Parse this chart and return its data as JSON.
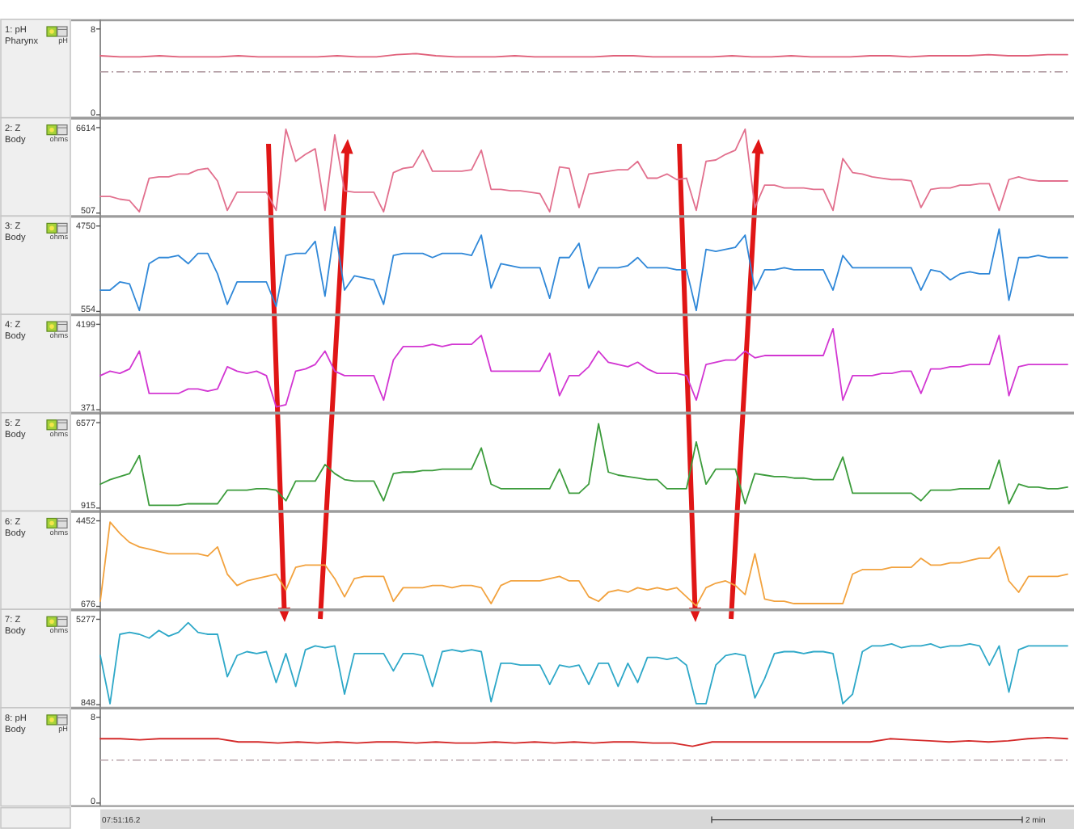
{
  "chart_data": [
    {
      "type": "line",
      "ylabel": "1: pH Pharynx",
      "annotations": [
        "pH"
      ],
      "categories": [
        null,
        null,
        null,
        null,
        null,
        null,
        null,
        null,
        null,
        null,
        null,
        null,
        null,
        null,
        null,
        null,
        null,
        null,
        null,
        null,
        null,
        null,
        null,
        null,
        null,
        null,
        null,
        null,
        null,
        null,
        null,
        null,
        null,
        null,
        null,
        null,
        null,
        null,
        null,
        null,
        null,
        null,
        null,
        null,
        null,
        null,
        null,
        null,
        null,
        null
      ],
      "series": [
        {
          "color": "#e0607a",
          "values": [
            5.5,
            5.4,
            5.4,
            5.5,
            5.4,
            5.4,
            5.4,
            5.5,
            5.4,
            5.4,
            5.4,
            5.4,
            5.5,
            5.4,
            5.4,
            5.6,
            5.7,
            5.5,
            5.4,
            5.4,
            5.4,
            5.5,
            5.4,
            5.4,
            5.4,
            5.4,
            5.5,
            5.5,
            5.4,
            5.4,
            5.4,
            5.4,
            5.5,
            5.4,
            5.4,
            5.5,
            5.4,
            5.4,
            5.4,
            5.5,
            5.5,
            5.4,
            5.5,
            5.5,
            5.5,
            5.6,
            5.5,
            5.5,
            5.6,
            5.6
          ]
        }
      ],
      "ylim": [
        0,
        8.8
      ],
      "yticks": [
        0,
        8
      ],
      "ref_lines": [
        {
          "axis": "y",
          "value": 4,
          "color": "#b8a4aa",
          "line_style": "dashed"
        }
      ]
    },
    {
      "type": "line",
      "ylabel": "2: Z Body",
      "annotations": [
        "ohms"
      ],
      "categories": [
        null,
        null,
        null,
        null,
        null,
        null,
        null,
        null,
        null,
        null,
        null,
        null,
        null,
        null,
        null,
        null,
        null,
        null,
        null,
        null,
        null,
        null,
        null,
        null,
        null,
        null,
        null,
        null,
        null,
        null,
        null,
        null,
        null,
        null,
        null,
        null,
        null,
        null,
        null,
        null,
        null,
        null,
        null,
        null,
        null,
        null,
        null,
        null,
        null,
        null,
        null,
        null,
        null,
        null,
        null,
        null,
        null,
        null,
        null,
        null,
        null,
        null,
        null,
        null,
        null,
        null,
        null,
        null,
        null,
        null,
        null,
        null,
        null,
        null,
        null,
        null,
        null,
        null,
        null,
        null,
        null,
        null,
        null,
        null,
        null,
        null,
        null,
        null,
        null,
        null,
        null,
        null,
        null,
        null,
        null,
        null,
        null,
        null,
        null,
        null
      ],
      "series": [
        {
          "color": "#e2708e",
          "values": [
            1700,
            1700,
            1500,
            1400,
            600,
            3000,
            3100,
            3100,
            3300,
            3300,
            3600,
            3700,
            2800,
            700,
            2000,
            2000,
            2000,
            2000,
            700,
            6500,
            4200,
            4700,
            5100,
            700,
            6100,
            2100,
            2000,
            2000,
            2000,
            600,
            3400,
            3700,
            3800,
            5000,
            3500,
            3500,
            3500,
            3500,
            3600,
            5000,
            2200,
            2200,
            2100,
            2100,
            2000,
            1900,
            600,
            3800,
            3700,
            900,
            3300,
            3400,
            3500,
            3600,
            3600,
            4200,
            3000,
            3000,
            3300,
            2900,
            3000,
            700,
            4200,
            4300,
            4700,
            5000,
            6500,
            900,
            2500,
            2500,
            2300,
            2300,
            2300,
            2200,
            2200,
            700,
            4400,
            3400,
            3300,
            3100,
            3000,
            2900,
            2900,
            2800,
            900,
            2200,
            2300,
            2300,
            2500,
            2500,
            2600,
            2600,
            700,
            2900,
            3100,
            2900,
            2800,
            2800,
            2800,
            2800
          ]
        }
      ],
      "ylim": [
        507,
        7250
      ],
      "yticks": [
        507,
        6614
      ]
    },
    {
      "type": "line",
      "ylabel": "3: Z Body",
      "annotations": [
        "ohms"
      ],
      "categories": [
        null,
        null,
        null,
        null,
        null,
        null,
        null,
        null,
        null,
        null,
        null,
        null,
        null,
        null,
        null,
        null,
        null,
        null,
        null,
        null,
        null,
        null,
        null,
        null,
        null,
        null,
        null,
        null,
        null,
        null,
        null,
        null,
        null,
        null,
        null,
        null,
        null,
        null,
        null,
        null,
        null,
        null,
        null,
        null,
        null,
        null,
        null,
        null,
        null,
        null,
        null,
        null,
        null,
        null,
        null,
        null,
        null,
        null,
        null,
        null,
        null,
        null,
        null,
        null,
        null,
        null,
        null,
        null,
        null,
        null,
        null,
        null,
        null,
        null,
        null,
        null,
        null,
        null,
        null,
        null,
        null,
        null,
        null,
        null,
        null,
        null,
        null,
        null,
        null,
        null,
        null,
        null,
        null,
        null,
        null,
        null,
        null,
        null,
        null,
        null
      ],
      "series": [
        {
          "color": "#3088d8",
          "values": [
            1600,
            1600,
            2000,
            1900,
            600,
            2900,
            3200,
            3200,
            3300,
            2900,
            3400,
            3400,
            2400,
            900,
            2000,
            2000,
            2000,
            2000,
            800,
            3300,
            3400,
            3400,
            4000,
            1300,
            4700,
            1600,
            2300,
            2200,
            2100,
            900,
            3300,
            3400,
            3400,
            3400,
            3200,
            3400,
            3400,
            3400,
            3300,
            4300,
            1700,
            2900,
            2800,
            2700,
            2700,
            2700,
            1200,
            3200,
            3200,
            3900,
            1700,
            2700,
            2700,
            2700,
            2800,
            3200,
            2700,
            2700,
            2700,
            2600,
            2600,
            600,
            3600,
            3500,
            3600,
            3700,
            4300,
            1600,
            2600,
            2600,
            2700,
            2600,
            2600,
            2600,
            2600,
            1600,
            3300,
            2700,
            2700,
            2700,
            2700,
            2700,
            2700,
            2700,
            1600,
            2600,
            2500,
            2100,
            2400,
            2500,
            2400,
            2400,
            4600,
            1100,
            3200,
            3200,
            3300,
            3200,
            3200,
            3200
          ]
        }
      ],
      "ylim": [
        554,
        5190
      ],
      "yticks": [
        554,
        4750
      ]
    },
    {
      "type": "line",
      "ylabel": "4: Z Body",
      "annotations": [
        "ohms"
      ],
      "categories": [
        null,
        null,
        null,
        null,
        null,
        null,
        null,
        null,
        null,
        null,
        null,
        null,
        null,
        null,
        null,
        null,
        null,
        null,
        null,
        null,
        null,
        null,
        null,
        null,
        null,
        null,
        null,
        null,
        null,
        null,
        null,
        null,
        null,
        null,
        null,
        null,
        null,
        null,
        null,
        null,
        null,
        null,
        null,
        null,
        null,
        null,
        null,
        null,
        null,
        null,
        null,
        null,
        null,
        null,
        null,
        null,
        null,
        null,
        null,
        null,
        null,
        null,
        null,
        null,
        null,
        null,
        null,
        null,
        null,
        null,
        null,
        null,
        null,
        null,
        null,
        null,
        null,
        null,
        null,
        null,
        null,
        null,
        null,
        null,
        null,
        null,
        null,
        null,
        null,
        null,
        null,
        null,
        null,
        null,
        null,
        null,
        null,
        null,
        null,
        null
      ],
      "series": [
        {
          "color": "#d236d2",
          "values": [
            1900,
            2100,
            2000,
            2200,
            3000,
            1100,
            1100,
            1100,
            1100,
            1300,
            1300,
            1200,
            1300,
            2300,
            2100,
            2000,
            2100,
            1900,
            500,
            600,
            2100,
            2200,
            2400,
            3000,
            2100,
            1900,
            1900,
            1900,
            1900,
            800,
            2600,
            3200,
            3200,
            3200,
            3300,
            3200,
            3300,
            3300,
            3300,
            3700,
            2100,
            2100,
            2100,
            2100,
            2100,
            2100,
            2900,
            1000,
            1900,
            1900,
            2300,
            3000,
            2500,
            2400,
            2300,
            2500,
            2200,
            2000,
            2000,
            2000,
            1900,
            800,
            2400,
            2500,
            2600,
            2600,
            3000,
            2700,
            2800,
            2800,
            2800,
            2800,
            2800,
            2800,
            2800,
            4000,
            800,
            1900,
            1900,
            1900,
            2000,
            2000,
            2100,
            2100,
            1100,
            2200,
            2200,
            2300,
            2300,
            2400,
            2400,
            2400,
            3700,
            1000,
            2300,
            2400,
            2400,
            2400,
            2400,
            2400
          ]
        }
      ],
      "ylim": [
        371,
        4600
      ],
      "yticks": [
        371,
        4199
      ]
    },
    {
      "type": "line",
      "ylabel": "5: Z Body",
      "annotations": [
        "ohms"
      ],
      "categories": [
        null,
        null,
        null,
        null,
        null,
        null,
        null,
        null,
        null,
        null,
        null,
        null,
        null,
        null,
        null,
        null,
        null,
        null,
        null,
        null,
        null,
        null,
        null,
        null,
        null,
        null,
        null,
        null,
        null,
        null,
        null,
        null,
        null,
        null,
        null,
        null,
        null,
        null,
        null,
        null,
        null,
        null,
        null,
        null,
        null,
        null,
        null,
        null,
        null,
        null,
        null,
        null,
        null,
        null,
        null,
        null,
        null,
        null,
        null,
        null,
        null,
        null,
        null,
        null,
        null,
        null,
        null,
        null,
        null,
        null,
        null,
        null,
        null,
        null,
        null,
        null,
        null,
        null,
        null,
        null,
        null,
        null,
        null,
        null,
        null,
        null,
        null,
        null,
        null,
        null,
        null,
        null,
        null,
        null,
        null,
        null,
        null,
        null,
        null,
        null
      ],
      "series": [
        {
          "color": "#3c9c3c",
          "values": [
            2500,
            2800,
            3000,
            3200,
            4400,
            1100,
            1100,
            1100,
            1100,
            1200,
            1200,
            1200,
            1200,
            2100,
            2100,
            2100,
            2200,
            2200,
            2100,
            1400,
            2700,
            2700,
            2700,
            3800,
            3200,
            2800,
            2700,
            2700,
            2700,
            1400,
            3200,
            3300,
            3300,
            3400,
            3400,
            3500,
            3500,
            3500,
            3500,
            4900,
            2500,
            2200,
            2200,
            2200,
            2200,
            2200,
            2200,
            3500,
            1900,
            1900,
            2500,
            6500,
            3300,
            3100,
            3000,
            2900,
            2800,
            2800,
            2200,
            2200,
            2200,
            5300,
            2500,
            3500,
            3500,
            3500,
            1200,
            3200,
            3100,
            3000,
            3000,
            2900,
            2900,
            2800,
            2800,
            2800,
            4300,
            1900,
            1900,
            1900,
            1900,
            1900,
            1900,
            1900,
            1400,
            2100,
            2100,
            2100,
            2200,
            2200,
            2200,
            2200,
            4100,
            1200,
            2500,
            2300,
            2300,
            2200,
            2200,
            2300
          ]
        }
      ],
      "ylim": [
        915,
        7170
      ],
      "yticks": [
        915,
        6577
      ]
    },
    {
      "type": "line",
      "ylabel": "6: Z Body",
      "annotations": [
        "ohms"
      ],
      "categories": [
        null,
        null,
        null,
        null,
        null,
        null,
        null,
        null,
        null,
        null,
        null,
        null,
        null,
        null,
        null,
        null,
        null,
        null,
        null,
        null,
        null,
        null,
        null,
        null,
        null,
        null,
        null,
        null,
        null,
        null,
        null,
        null,
        null,
        null,
        null,
        null,
        null,
        null,
        null,
        null,
        null,
        null,
        null,
        null,
        null,
        null,
        null,
        null,
        null,
        null,
        null,
        null,
        null,
        null,
        null,
        null,
        null,
        null,
        null,
        null,
        null,
        null,
        null,
        null,
        null,
        null,
        null,
        null,
        null,
        null,
        null,
        null,
        null,
        null,
        null,
        null,
        null,
        null,
        null,
        null,
        null,
        null,
        null,
        null,
        null,
        null,
        null,
        null,
        null,
        null,
        null,
        null,
        null,
        null,
        null,
        null,
        null,
        null,
        null,
        null
      ],
      "series": [
        {
          "color": "#f2a23e",
          "values": [
            900,
            4400,
            3900,
            3500,
            3300,
            3200,
            3100,
            3000,
            3000,
            3000,
            3000,
            2900,
            3300,
            2100,
            1600,
            1800,
            1900,
            2000,
            2100,
            1400,
            2400,
            2500,
            2500,
            2500,
            1900,
            1100,
            1900,
            2000,
            2000,
            2000,
            900,
            1500,
            1500,
            1500,
            1600,
            1600,
            1500,
            1600,
            1600,
            1500,
            800,
            1600,
            1800,
            1800,
            1800,
            1800,
            1900,
            2000,
            1800,
            1800,
            1100,
            900,
            1300,
            1400,
            1300,
            1500,
            1400,
            1500,
            1400,
            1500,
            1100,
            700,
            1500,
            1700,
            1800,
            1600,
            1200,
            3000,
            1000,
            900,
            900,
            800,
            800,
            800,
            800,
            800,
            800,
            2100,
            2300,
            2300,
            2300,
            2400,
            2400,
            2400,
            2800,
            2500,
            2500,
            2600,
            2600,
            2700,
            2800,
            2800,
            3300,
            1800,
            1300,
            2000,
            2000,
            2000,
            2000,
            2100
          ]
        }
      ],
      "ylim": [
        676,
        4840
      ],
      "yticks": [
        676,
        4452
      ]
    },
    {
      "type": "line",
      "ylabel": "7: Z Body",
      "annotations": [
        "ohms"
      ],
      "categories": [
        null,
        null,
        null,
        null,
        null,
        null,
        null,
        null,
        null,
        null,
        null,
        null,
        null,
        null,
        null,
        null,
        null,
        null,
        null,
        null,
        null,
        null,
        null,
        null,
        null,
        null,
        null,
        null,
        null,
        null,
        null,
        null,
        null,
        null,
        null,
        null,
        null,
        null,
        null,
        null,
        null,
        null,
        null,
        null,
        null,
        null,
        null,
        null,
        null,
        null,
        null,
        null,
        null,
        null,
        null,
        null,
        null,
        null,
        null,
        null,
        null,
        null,
        null,
        null,
        null,
        null,
        null,
        null,
        null,
        null,
        null,
        null,
        null,
        null,
        null,
        null,
        null,
        null,
        null,
        null,
        null,
        null,
        null,
        null,
        null,
        null,
        null,
        null,
        null,
        null,
        null,
        null,
        null,
        null,
        null,
        null,
        null,
        null,
        null,
        null
      ],
      "series": [
        {
          "color": "#2ea8c8",
          "values": [
            3400,
            900,
            4500,
            4600,
            4500,
            4300,
            4700,
            4400,
            4600,
            5100,
            4600,
            4500,
            4500,
            2300,
            3400,
            3600,
            3500,
            3600,
            2000,
            3500,
            1800,
            3700,
            3900,
            3800,
            3900,
            1400,
            3500,
            3500,
            3500,
            3500,
            2600,
            3500,
            3500,
            3400,
            1800,
            3600,
            3700,
            3600,
            3700,
            3600,
            1000,
            3000,
            3000,
            2900,
            2900,
            2900,
            1900,
            2900,
            2800,
            2900,
            1900,
            3000,
            3000,
            1800,
            3000,
            2000,
            3300,
            3300,
            3200,
            3300,
            2900,
            900,
            900,
            2900,
            3400,
            3500,
            3400,
            1200,
            2200,
            3500,
            3600,
            3600,
            3500,
            3600,
            3600,
            3500,
            900,
            1400,
            3600,
            3900,
            3900,
            4000,
            3800,
            3900,
            3900,
            4000,
            3800,
            3900,
            3900,
            4000,
            3900,
            2900,
            3900,
            1500,
            3700,
            3900,
            3900,
            3900,
            3900,
            3900
          ]
        }
      ],
      "ylim": [
        848,
        5740
      ],
      "yticks": [
        848,
        5277
      ]
    },
    {
      "type": "line",
      "ylabel": "8: pH Body",
      "annotations": [
        "pH",
        "07:51:16.2",
        "2 min"
      ],
      "categories": [
        null,
        null,
        null,
        null,
        null,
        null,
        null,
        null,
        null,
        null,
        null,
        null,
        null,
        null,
        null,
        null,
        null,
        null,
        null,
        null,
        null,
        null,
        null,
        null,
        null,
        null,
        null,
        null,
        null,
        null,
        null,
        null,
        null,
        null,
        null,
        null,
        null,
        null,
        null,
        null,
        null,
        null,
        null,
        null,
        null,
        null,
        null,
        null,
        null,
        null
      ],
      "series": [
        {
          "color": "#d42a2a",
          "values": [
            6.0,
            6.0,
            5.9,
            6.0,
            6.0,
            6.0,
            6.0,
            5.7,
            5.7,
            5.6,
            5.7,
            5.6,
            5.7,
            5.6,
            5.7,
            5.7,
            5.6,
            5.7,
            5.6,
            5.6,
            5.7,
            5.6,
            5.7,
            5.6,
            5.7,
            5.6,
            5.7,
            5.7,
            5.6,
            5.6,
            5.3,
            5.7,
            5.7,
            5.7,
            5.7,
            5.7,
            5.7,
            5.7,
            5.7,
            5.7,
            6.0,
            5.9,
            5.8,
            5.7,
            5.8,
            5.7,
            5.8,
            6.0,
            6.1,
            6.0
          ]
        }
      ],
      "ylim": [
        0,
        8.8
      ],
      "yticks": [
        0,
        8
      ],
      "ref_lines": [
        {
          "axis": "y",
          "value": 4,
          "color": "#b8a4aa",
          "line_style": "dashed"
        }
      ]
    }
  ]
}
